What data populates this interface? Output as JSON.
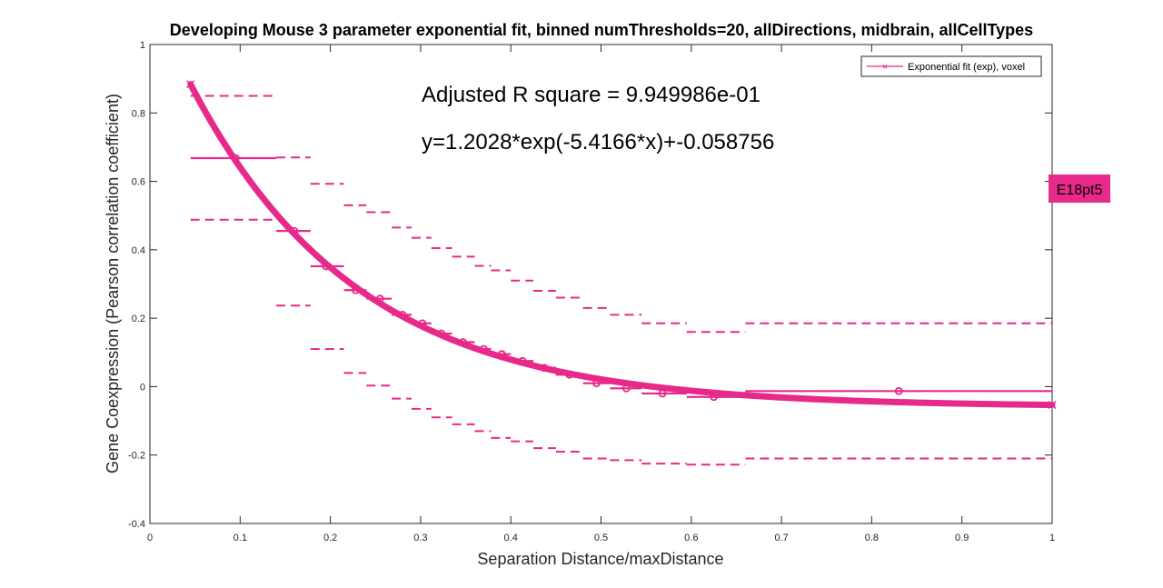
{
  "chart_data": {
    "type": "line",
    "title": "Developing Mouse 3 parameter exponential fit, binned numThresholds=20, allDirections, midbrain, allCellTypes",
    "xlabel": "Separation Distance/maxDistance",
    "ylabel": "Gene Coexpression (Pearson correlation coefficient)",
    "xlim": [
      0,
      1
    ],
    "ylim": [
      -0.4,
      1
    ],
    "x_ticks": [
      "0",
      "0.1",
      "0.2",
      "0.3",
      "0.4",
      "0.5",
      "0.6",
      "0.7",
      "0.8",
      "0.9",
      "1"
    ],
    "y_ticks": [
      "-0.4",
      "-0.2",
      "0",
      "0.2",
      "0.4",
      "0.6",
      "0.8",
      "1"
    ],
    "grid": false,
    "legend": {
      "position": "top-right",
      "entries": [
        "Exponential fit (exp), voxel"
      ]
    },
    "color": "#e7298a",
    "annotations": {
      "r_square": "Adjusted R square = 9.949986e-01",
      "equation": "y=1.2028*exp(-5.4166*x)+-0.058756"
    },
    "side_label": "E18pt5",
    "fit": {
      "a": 1.2028,
      "b": -5.4166,
      "c": -0.058756,
      "x_range": [
        0.045,
        1.0
      ]
    },
    "bins": [
      {
        "x0": 0.045,
        "x1": 0.14,
        "mean": 0.668,
        "upper": 0.85,
        "lower": 0.488
      },
      {
        "x0": 0.14,
        "x1": 0.178,
        "mean": 0.455,
        "upper": 0.67,
        "lower": 0.237
      },
      {
        "x0": 0.178,
        "x1": 0.215,
        "mean": 0.352,
        "upper": 0.593,
        "lower": 0.11
      },
      {
        "x0": 0.215,
        "x1": 0.24,
        "mean": 0.282,
        "upper": 0.53,
        "lower": 0.04
      },
      {
        "x0": 0.24,
        "x1": 0.268,
        "mean": 0.257,
        "upper": 0.51,
        "lower": 0.003
      },
      {
        "x0": 0.268,
        "x1": 0.29,
        "mean": 0.21,
        "upper": 0.465,
        "lower": -0.035
      },
      {
        "x0": 0.29,
        "x1": 0.312,
        "mean": 0.185,
        "upper": 0.435,
        "lower": -0.065
      },
      {
        "x0": 0.312,
        "x1": 0.335,
        "mean": 0.155,
        "upper": 0.405,
        "lower": -0.09
      },
      {
        "x0": 0.335,
        "x1": 0.36,
        "mean": 0.13,
        "upper": 0.38,
        "lower": -0.11
      },
      {
        "x0": 0.36,
        "x1": 0.378,
        "mean": 0.11,
        "upper": 0.353,
        "lower": -0.13
      },
      {
        "x0": 0.378,
        "x1": 0.4,
        "mean": 0.095,
        "upper": 0.34,
        "lower": -0.15
      },
      {
        "x0": 0.4,
        "x1": 0.425,
        "mean": 0.075,
        "upper": 0.31,
        "lower": -0.16
      },
      {
        "x0": 0.425,
        "x1": 0.45,
        "mean": 0.055,
        "upper": 0.28,
        "lower": -0.18
      },
      {
        "x0": 0.45,
        "x1": 0.48,
        "mean": 0.035,
        "upper": 0.26,
        "lower": -0.19
      },
      {
        "x0": 0.48,
        "x1": 0.51,
        "mean": 0.01,
        "upper": 0.23,
        "lower": -0.21
      },
      {
        "x0": 0.51,
        "x1": 0.545,
        "mean": -0.005,
        "upper": 0.21,
        "lower": -0.215
      },
      {
        "x0": 0.545,
        "x1": 0.595,
        "mean": -0.02,
        "upper": 0.185,
        "lower": -0.225
      },
      {
        "x0": 0.595,
        "x1": 0.66,
        "mean": -0.03,
        "upper": 0.16,
        "lower": -0.228
      },
      {
        "x0": 0.66,
        "x1": 1.0,
        "mean": -0.013,
        "upper": 0.185,
        "lower": -0.21
      }
    ],
    "bin_points": [
      {
        "x": 0.095,
        "y": 0.668
      },
      {
        "x": 0.16,
        "y": 0.455
      },
      {
        "x": 0.195,
        "y": 0.352
      },
      {
        "x": 0.228,
        "y": 0.282
      },
      {
        "x": 0.255,
        "y": 0.257
      },
      {
        "x": 0.28,
        "y": 0.21
      },
      {
        "x": 0.302,
        "y": 0.185
      },
      {
        "x": 0.323,
        "y": 0.155
      },
      {
        "x": 0.347,
        "y": 0.13
      },
      {
        "x": 0.37,
        "y": 0.11
      },
      {
        "x": 0.39,
        "y": 0.095
      },
      {
        "x": 0.413,
        "y": 0.075
      },
      {
        "x": 0.437,
        "y": 0.055
      },
      {
        "x": 0.465,
        "y": 0.035
      },
      {
        "x": 0.495,
        "y": 0.01
      },
      {
        "x": 0.528,
        "y": -0.005
      },
      {
        "x": 0.568,
        "y": -0.02
      },
      {
        "x": 0.625,
        "y": -0.03
      },
      {
        "x": 0.83,
        "y": -0.013
      }
    ]
  }
}
